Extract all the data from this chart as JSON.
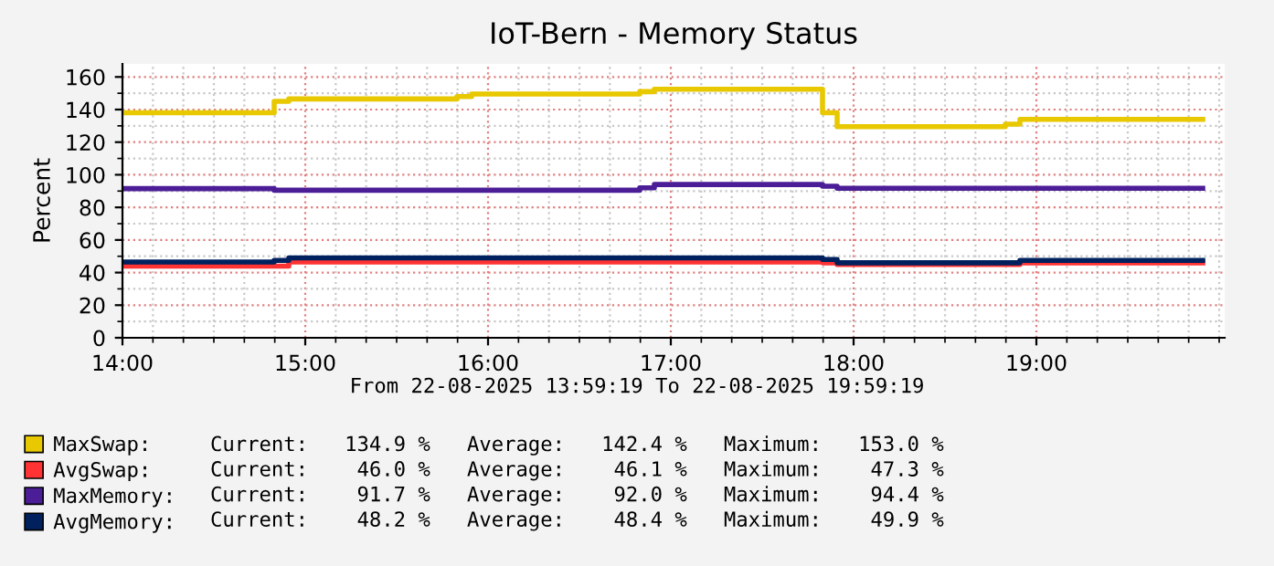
{
  "chart_data": {
    "type": "step",
    "title": "IoT-Bern - Memory Status",
    "ylabel": "Percent",
    "xlim": [
      14,
      20.03
    ],
    "ylim": [
      0,
      168
    ],
    "xticks": [
      {
        "value": 14,
        "label": "14:00"
      },
      {
        "value": 14.1667,
        "label": null
      },
      {
        "value": 14.3333,
        "label": null
      },
      {
        "value": 14.5,
        "label": null
      },
      {
        "value": 14.6667,
        "label": null
      },
      {
        "value": 14.8333,
        "label": null
      },
      {
        "value": 15,
        "label": "15:00"
      },
      {
        "value": 15.1667,
        "label": null
      },
      {
        "value": 15.3333,
        "label": null
      },
      {
        "value": 15.5,
        "label": null
      },
      {
        "value": 15.6667,
        "label": null
      },
      {
        "value": 15.8333,
        "label": null
      },
      {
        "value": 16,
        "label": "16:00"
      },
      {
        "value": 16.1667,
        "label": null
      },
      {
        "value": 16.3333,
        "label": null
      },
      {
        "value": 16.5,
        "label": null
      },
      {
        "value": 16.6667,
        "label": null
      },
      {
        "value": 16.8333,
        "label": null
      },
      {
        "value": 17,
        "label": "17:00"
      },
      {
        "value": 17.1667,
        "label": null
      },
      {
        "value": 17.3333,
        "label": null
      },
      {
        "value": 17.5,
        "label": null
      },
      {
        "value": 17.6667,
        "label": null
      },
      {
        "value": 17.8333,
        "label": null
      },
      {
        "value": 18,
        "label": "18:00"
      },
      {
        "value": 18.1667,
        "label": null
      },
      {
        "value": 18.3333,
        "label": null
      },
      {
        "value": 18.5,
        "label": null
      },
      {
        "value": 18.6667,
        "label": null
      },
      {
        "value": 18.8333,
        "label": null
      },
      {
        "value": 19,
        "label": "19:00"
      },
      {
        "value": 19.1667,
        "label": null
      },
      {
        "value": 19.3333,
        "label": null
      },
      {
        "value": 19.5,
        "label": null
      },
      {
        "value": 19.6667,
        "label": null
      },
      {
        "value": 19.8333,
        "label": null
      },
      {
        "value": 20,
        "label": null
      }
    ],
    "yticks": [
      0,
      {
        "value": 10,
        "label": null
      },
      20,
      {
        "value": 30,
        "label": null
      },
      40,
      {
        "value": 50,
        "label": null
      },
      60,
      {
        "value": 70,
        "label": null
      },
      80,
      {
        "value": 90,
        "label": null
      },
      100,
      {
        "value": 110,
        "label": null
      },
      120,
      {
        "value": 130,
        "label": null
      },
      140,
      {
        "value": 150,
        "label": null
      },
      160
    ],
    "grid": true,
    "legend": "bottom",
    "line_style": "solid",
    "series": [
      {
        "name": "MaxSwap:",
        "color": "#e8c800",
        "x": [
          14.0,
          14.83,
          14.91,
          15.83,
          15.91,
          16.83,
          16.91,
          17.83,
          17.91,
          18.83,
          18.91,
          19.91
        ],
        "values": [
          138,
          145,
          146.5,
          148,
          149.5,
          151,
          152.5,
          138,
          129.5,
          131,
          134,
          134
        ]
      },
      {
        "name": "AvgSwap:",
        "color": "#ff3333",
        "x": [
          14.0,
          14.83,
          14.91,
          15.83,
          15.91,
          16.83,
          16.91,
          17.83,
          17.91,
          18.83,
          18.91,
          19.91
        ],
        "values": [
          44,
          44,
          46.5,
          46.5,
          46.5,
          46.5,
          46.5,
          46,
          45,
          45,
          46,
          46
        ]
      },
      {
        "name": "MaxMemory:",
        "color": "#4b1d96",
        "x": [
          14.0,
          14.83,
          14.91,
          15.83,
          15.91,
          16.83,
          16.91,
          17.83,
          17.91,
          18.83,
          18.91,
          19.91
        ],
        "values": [
          91.5,
          90.5,
          90.5,
          90.5,
          90.5,
          92,
          94,
          93,
          91.7,
          91.7,
          91.7,
          91.7
        ]
      },
      {
        "name": "AvgMemory:",
        "color": "#00215e",
        "x": [
          14.0,
          14.83,
          14.91,
          15.83,
          15.91,
          16.83,
          16.91,
          17.83,
          17.91,
          18.83,
          18.91,
          19.91
        ],
        "values": [
          46.5,
          47.5,
          49,
          49,
          49,
          49,
          49,
          48,
          46,
          46,
          47.5,
          47.5
        ]
      }
    ],
    "annotations": [
      "From 22-08-2025 13:59:19 To 22-08-2025 19:59:19",
      "Current:   134.9 %   Average:   142.4 %   Maximum:   153.0 %",
      "Current:    46.0 %   Average:    46.1 %   Maximum:    47.3 %",
      "Current:    91.7 %   Average:    92.0 %   Maximum:    94.4 %",
      "Current:    48.2 %   Average:    48.4 %   Maximum:    49.9 %"
    ]
  }
}
